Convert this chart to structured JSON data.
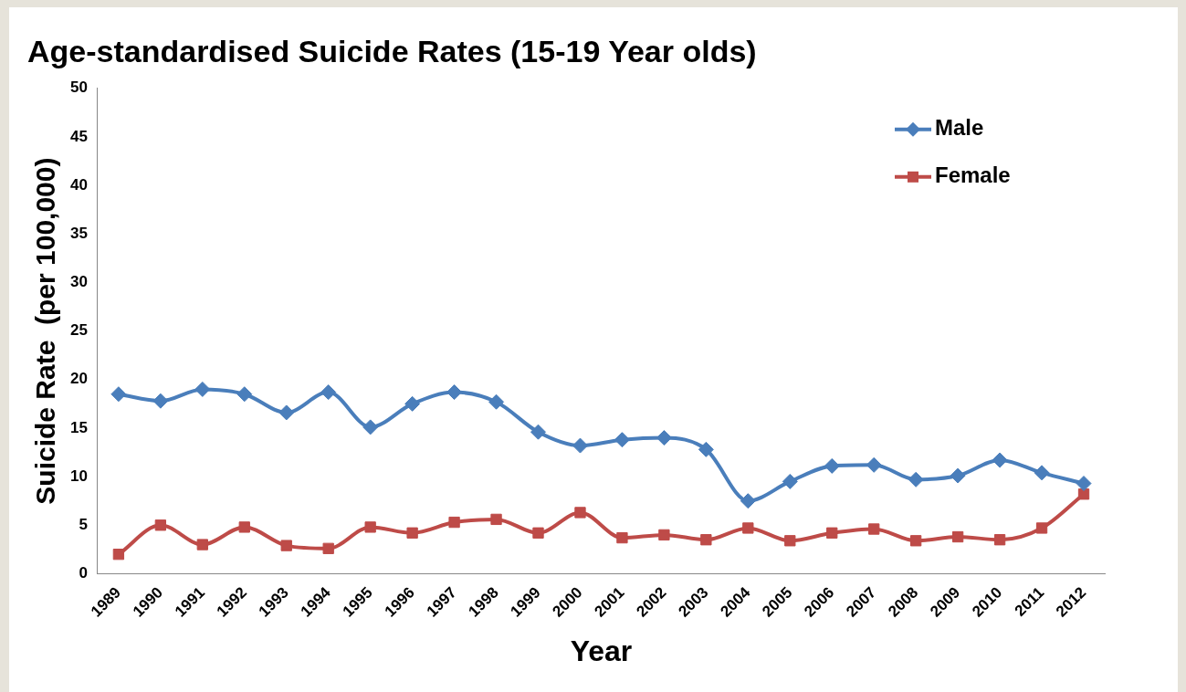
{
  "chart_data": {
    "type": "line",
    "title": "Age-standardised Suicide Rates (15-19 Year olds)",
    "xlabel": "Year",
    "ylabel": "Suicide Rate  (per 100,000)",
    "categories": [
      "1989",
      "1990",
      "1991",
      "1992",
      "1993",
      "1994",
      "1995",
      "1996",
      "1997",
      "1998",
      "1999",
      "2000",
      "2001",
      "2002",
      "2003",
      "2004",
      "2005",
      "2006",
      "2007",
      "2008",
      "2009",
      "2010",
      "2011",
      "2012"
    ],
    "series": [
      {
        "name": "Male",
        "color": "#4a7ebb",
        "marker": "diamond",
        "values": [
          18.5,
          17.8,
          19.0,
          18.5,
          16.6,
          18.7,
          15.1,
          17.5,
          18.7,
          17.7,
          14.6,
          13.2,
          13.8,
          14.0,
          12.8,
          7.5,
          9.5,
          11.1,
          11.2,
          9.7,
          10.1,
          11.7,
          10.4,
          9.3
        ]
      },
      {
        "name": "Female",
        "color": "#be4b48",
        "marker": "square",
        "values": [
          2.0,
          5.0,
          3.0,
          4.8,
          2.9,
          2.6,
          4.8,
          4.2,
          5.3,
          5.6,
          4.2,
          6.3,
          3.7,
          4.0,
          3.5,
          4.7,
          3.4,
          4.2,
          4.6,
          3.4,
          3.8,
          3.5,
          4.7,
          8.2
        ]
      }
    ],
    "ylim": [
      0,
      50
    ],
    "yticks": [
      0,
      5,
      10,
      15,
      20,
      25,
      30,
      35,
      40,
      45,
      50
    ],
    "grid": false,
    "legend": "top right",
    "line_style": "solid"
  }
}
